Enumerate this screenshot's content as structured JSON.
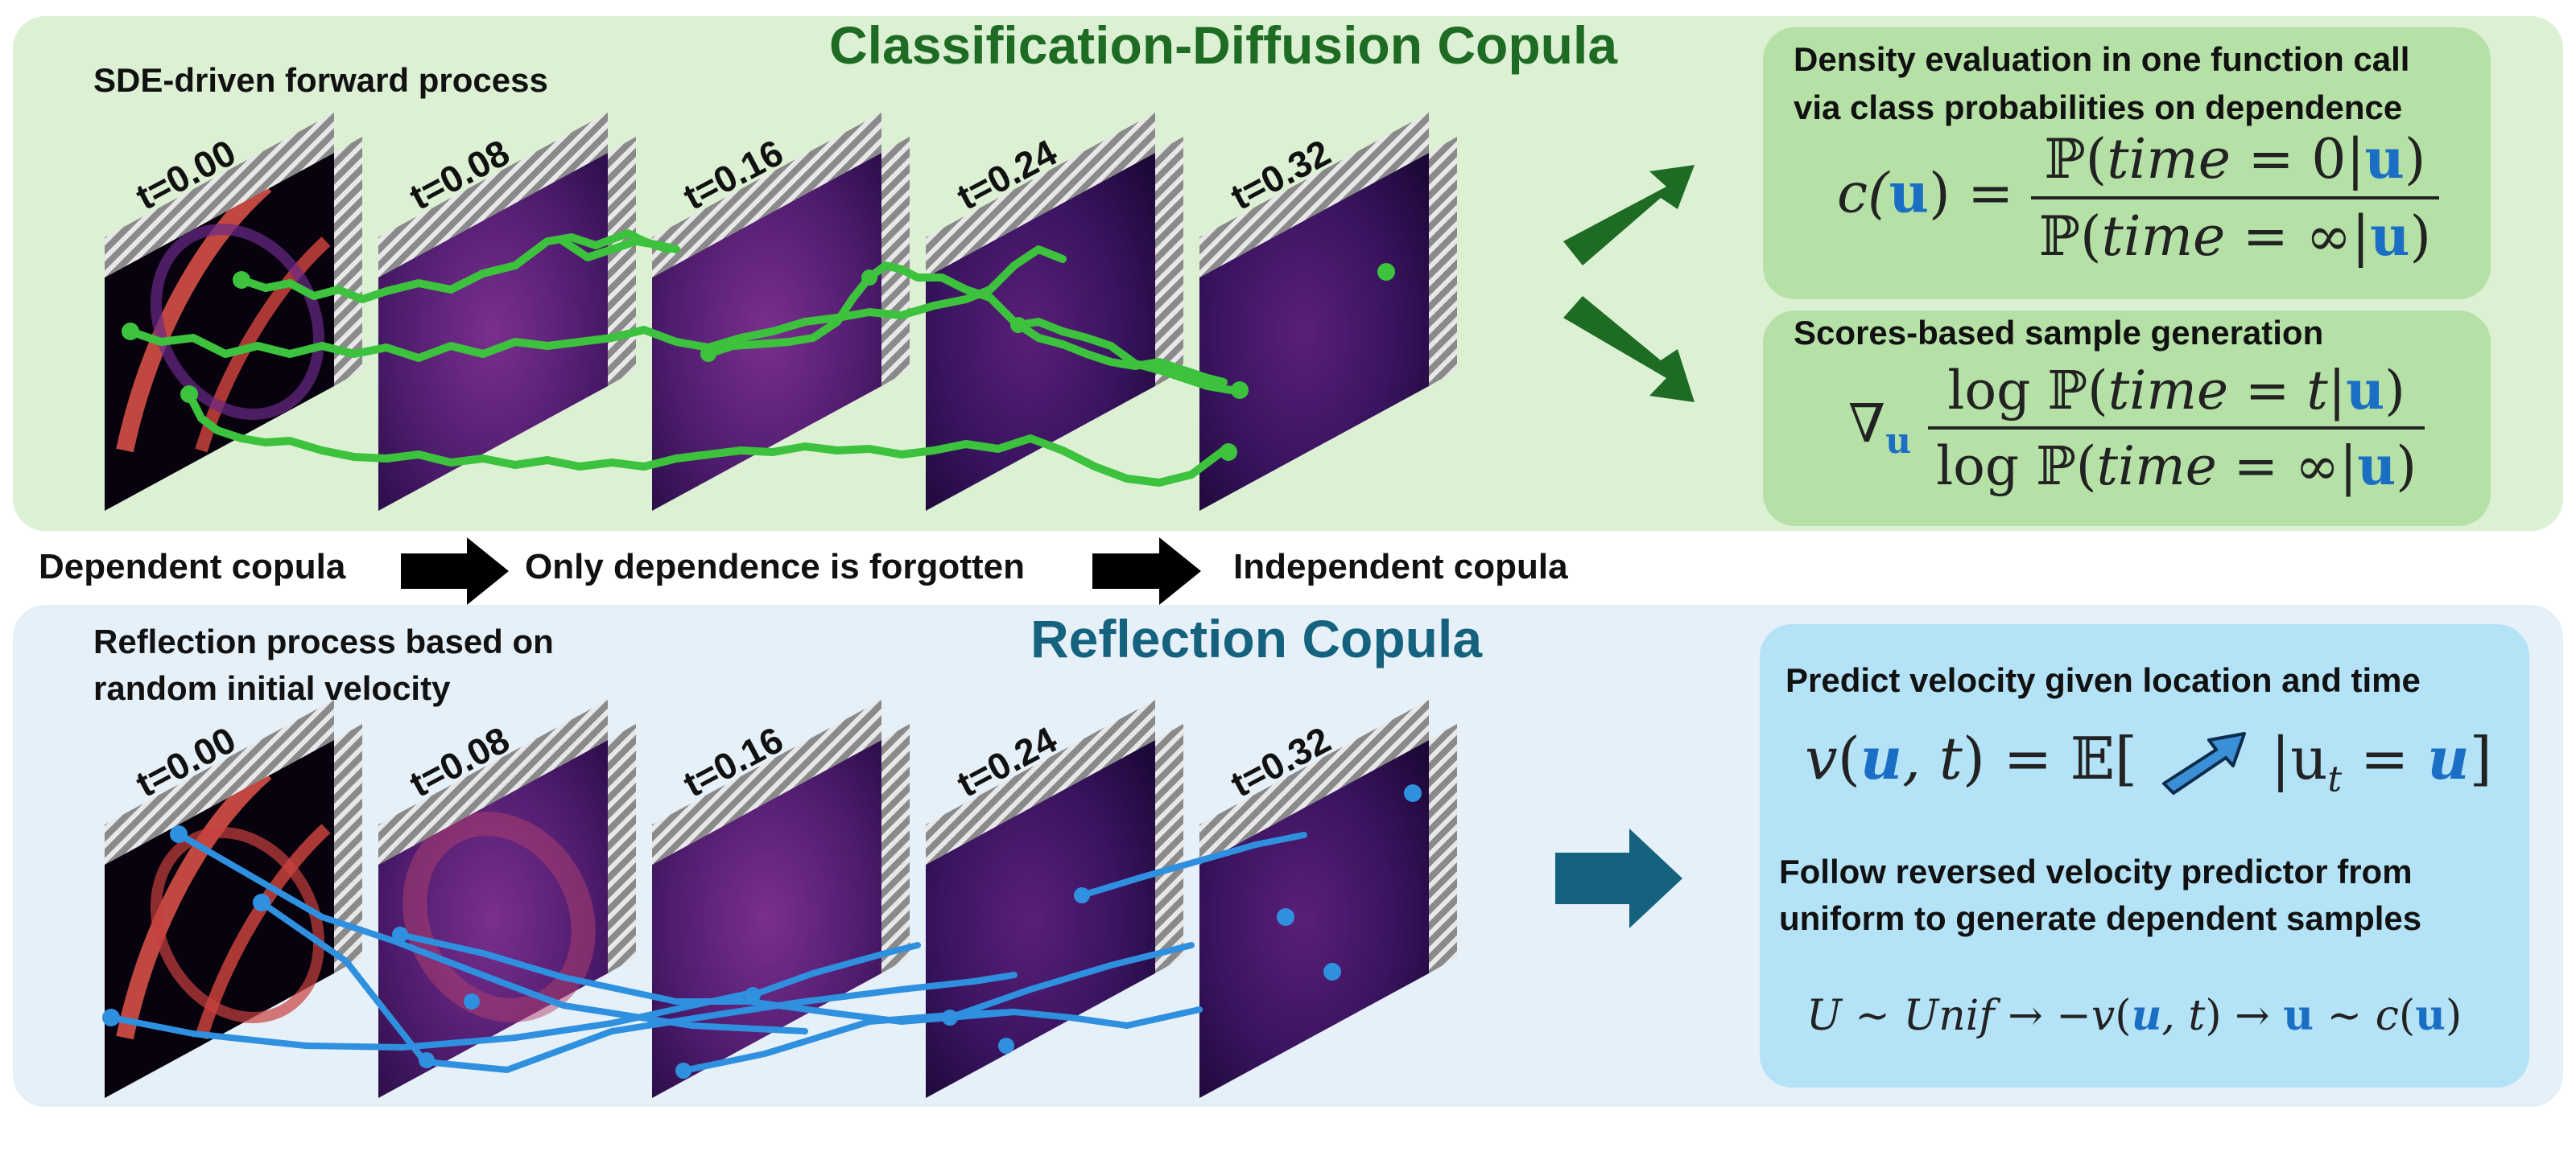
{
  "top_panel": {
    "title": "Classification-Diffusion Copula",
    "subtitle": "SDE-driven forward process",
    "time_labels": [
      "t=0.00",
      "t=0.08",
      "t=0.16",
      "t=0.24",
      "t=0.32"
    ],
    "box1": {
      "text_line1": "Density evaluation in one function call",
      "text_line2": "via class probabilities on dependence",
      "formula": {
        "lhs_c": "c(",
        "lhs_u": "u",
        "lhs_close": ") =",
        "num_prefix": "ℙ(",
        "num_time": "time",
        "num_mid": " = 0|",
        "num_u": "u",
        "num_close": ")",
        "den_prefix": "ℙ(",
        "den_time": "time",
        "den_mid": " = ∞|",
        "den_u": "u",
        "den_close": ")"
      }
    },
    "box2": {
      "text": "Scores-based sample generation",
      "formula": {
        "nabla": "∇",
        "nabla_sub": "u",
        "num_prefix": "log ℙ(",
        "num_time": "time",
        "num_mid": " = ",
        "num_t": "t",
        "num_bar": "|",
        "num_u": "u",
        "num_close": ")",
        "den_prefix": "log ℙ(",
        "den_time": "time",
        "den_mid": " = ∞|",
        "den_u": "u",
        "den_close": ")"
      }
    }
  },
  "flow_row": {
    "left": "Dependent copula",
    "middle": "Only dependence is forgotten",
    "right": "Independent copula"
  },
  "bottom_panel": {
    "title": "Reflection Copula",
    "subtitle_line1": "Reflection process based on",
    "subtitle_line2": "random initial velocity",
    "time_labels": [
      "t=0.00",
      "t=0.08",
      "t=0.16",
      "t=0.24",
      "t=0.32"
    ],
    "box": {
      "line1": "Predict velocity given location and time",
      "formula1": {
        "v": "v",
        "open": "(",
        "u": "u",
        "comma_t": ", t",
        "close": ") = 𝔼[",
        "cond": "|u",
        "cond_sub": "t",
        "eq": " = ",
        "u2": "u",
        "end": "]"
      },
      "line2": "Follow reversed velocity predictor from",
      "line3": "uniform to generate dependent samples",
      "formula2": {
        "U": "U",
        "tilde1": " ∼ ",
        "unif": "Unif",
        "arrow1": " → −",
        "v": "v",
        "open": "(",
        "u": "u",
        "comma_t": ", t",
        "close": ")",
        "arrow2": " → ",
        "u2": "u",
        "tilde2": " ∼ ",
        "c": "c",
        "open2": "(",
        "u3": "u",
        "close2": ")"
      }
    }
  },
  "colors": {
    "top_panel_bg": "#dcf0d4",
    "top_box_bg": "#b5e0a6",
    "top_title": "#1e6b23",
    "bottom_panel_bg": "#e6f0f8",
    "bottom_box_bg": "#b4e2f6",
    "bottom_title": "#15627f",
    "green_traj": "#3cc23c",
    "green_arrow": "#1e6b23",
    "blue_traj": "#2f90e0",
    "blue_arrow": "#15627f"
  }
}
